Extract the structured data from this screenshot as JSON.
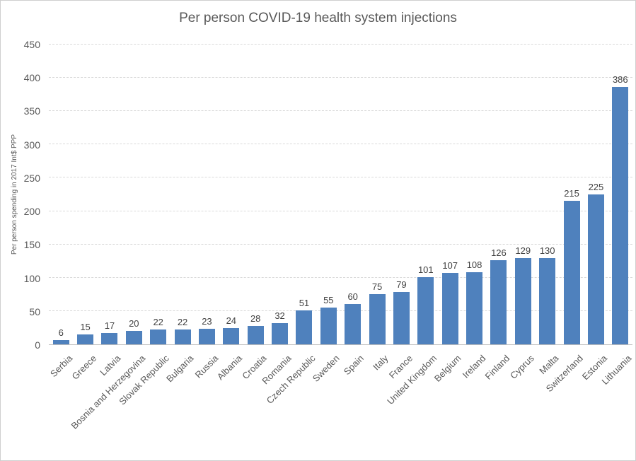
{
  "window": {
    "background_color": "#ffffff",
    "border_color": "#cfcfcf"
  },
  "chart_data": {
    "type": "bar",
    "title": "Per person COVID-19 health system injections",
    "xlabel": "",
    "ylabel": "Per person spending in 2017 Int$ PPP",
    "categories": [
      "Serbia",
      "Greece",
      "Latvia",
      "Bosnia and Herzegovina",
      "Slovak Republic",
      "Bulgaria",
      "Russia",
      "Albania",
      "Croatia",
      "Romania",
      "Czech Republic",
      "Sweden",
      "Spain",
      "Italy",
      "France",
      "United Kingdom",
      "Belgium",
      "Ireland",
      "Finland",
      "Cyprus",
      "Malta",
      "Switzerland",
      "Estonia",
      "Lithuania"
    ],
    "values": [
      6,
      15,
      17,
      20,
      22,
      22,
      23,
      24,
      28,
      32,
      51,
      55,
      60,
      75,
      79,
      101,
      107,
      108,
      126,
      129,
      130,
      215,
      225,
      386
    ],
    "data_labels": true,
    "ylim": [
      0,
      450
    ],
    "yticks": [
      0,
      50,
      100,
      150,
      200,
      250,
      300,
      350,
      400,
      450
    ],
    "grid": "horizontal-dashed",
    "legend": "none",
    "bar_color": "#4f81bd",
    "gridline_color": "#d9d9d9",
    "axis_line_color": "#bfbfbf",
    "title_color": "#595959",
    "axis_text_color": "#595959",
    "data_label_color": "#404040"
  }
}
